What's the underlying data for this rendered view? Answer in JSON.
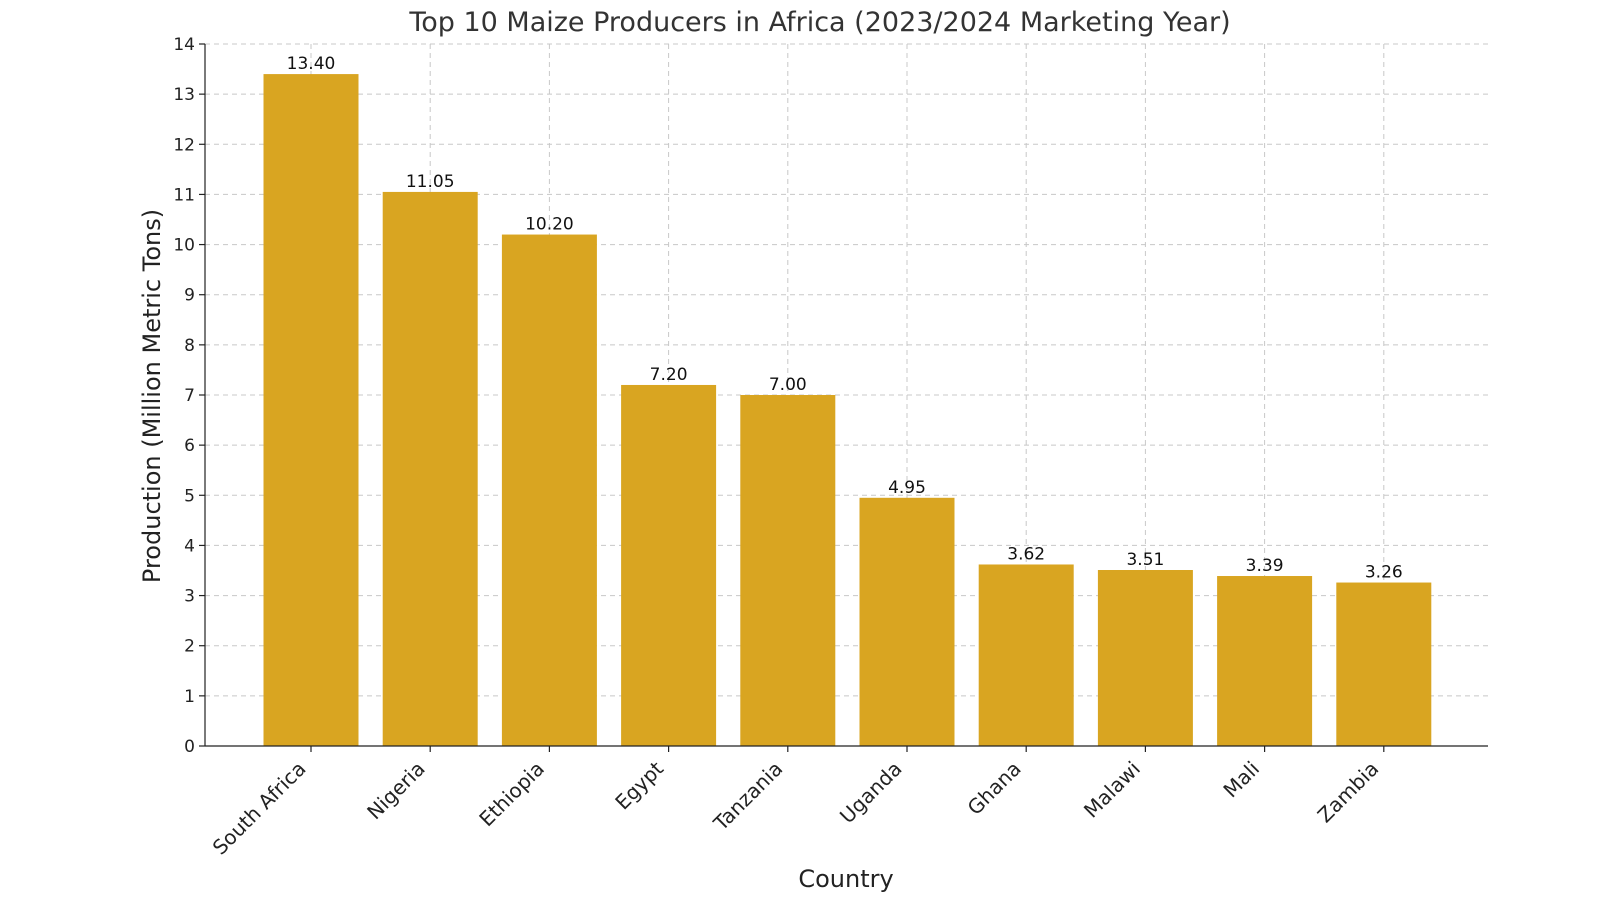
{
  "chart_data": {
    "type": "bar",
    "title": "Top 10 Maize Producers in Africa (2023/2024 Marketing Year)",
    "xlabel": "Country",
    "ylabel": "Production (Million Metric Tons)",
    "categories": [
      "South Africa",
      "Nigeria",
      "Ethiopia",
      "Egypt",
      "Tanzania",
      "Uganda",
      "Ghana",
      "Malawi",
      "Mali",
      "Zambia"
    ],
    "values": [
      13.4,
      11.05,
      10.2,
      7.2,
      7.0,
      4.95,
      3.62,
      3.51,
      3.39,
      3.26
    ],
    "value_labels": [
      "13.40",
      "11.05",
      "10.20",
      "7.20",
      "7.00",
      "4.95",
      "3.62",
      "3.51",
      "3.39",
      "3.26"
    ],
    "ylim": [
      0,
      14
    ],
    "yticks": [
      0,
      1,
      2,
      3,
      4,
      5,
      6,
      7,
      8,
      9,
      10,
      11,
      12,
      13,
      14
    ],
    "grid": true,
    "colors": {
      "bar": "#d9a521",
      "axis": "#222222",
      "grid": "#c8c8c8",
      "title": "#333333"
    }
  }
}
